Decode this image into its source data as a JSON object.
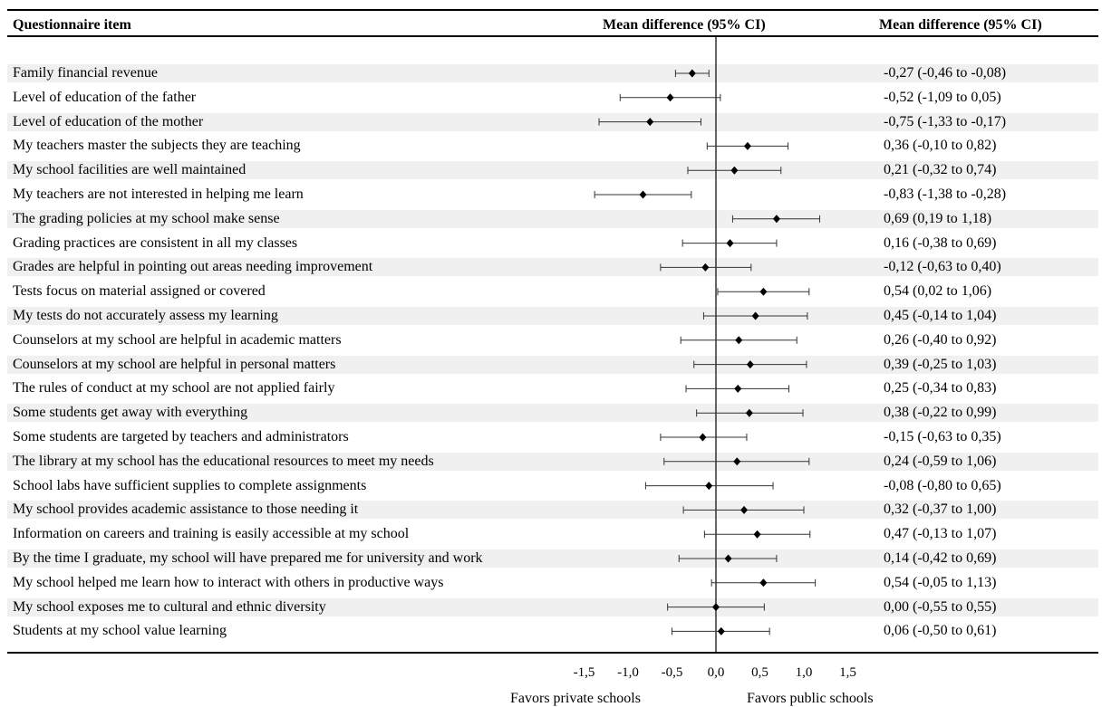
{
  "chart_data": {
    "type": "forest",
    "headers": {
      "item": "Questionnaire item",
      "plot": "Mean difference (95% CI)",
      "values": "Mean difference (95% CI)"
    },
    "xlim": [
      -1.5,
      1.5
    ],
    "ticks": [
      "-1,5",
      "-1,0",
      "-0,5",
      "0,0",
      "0,5",
      "1,0",
      "1,5"
    ],
    "tick_values": [
      -1.5,
      -1.0,
      -0.5,
      0.0,
      0.5,
      1.0,
      1.5
    ],
    "left_label": "Favors private schools",
    "right_label": "Favors public schools",
    "rows": [
      {
        "item": "Family financial revenue",
        "mean": -0.27,
        "lo": -0.46,
        "hi": -0.08,
        "text": "-0,27 (-0,46 to -0,08)"
      },
      {
        "item": "Level of education of the father",
        "mean": -0.52,
        "lo": -1.09,
        "hi": 0.05,
        "text": "-0,52 (-1,09 to 0,05)"
      },
      {
        "item": "Level of education of the mother",
        "mean": -0.75,
        "lo": -1.33,
        "hi": -0.17,
        "text": "-0,75 (-1,33 to -0,17)"
      },
      {
        "item": "My teachers master the subjects they are teaching",
        "mean": 0.36,
        "lo": -0.1,
        "hi": 0.82,
        "text": "0,36 (-0,10 to 0,82)"
      },
      {
        "item": "My school facilities are well maintained",
        "mean": 0.21,
        "lo": -0.32,
        "hi": 0.74,
        "text": "0,21 (-0,32 to 0,74)"
      },
      {
        "item": "My teachers are not interested in helping me learn",
        "mean": -0.83,
        "lo": -1.38,
        "hi": -0.28,
        "text": "-0,83 (-1,38 to -0,28)"
      },
      {
        "item": "The grading policies at my school make sense",
        "mean": 0.69,
        "lo": 0.19,
        "hi": 1.18,
        "text": "0,69 (0,19 to 1,18)"
      },
      {
        "item": "Grading practices are consistent in all my classes",
        "mean": 0.16,
        "lo": -0.38,
        "hi": 0.69,
        "text": "0,16 (-0,38 to 0,69)"
      },
      {
        "item": "Grades are helpful in pointing out areas needing improvement",
        "mean": -0.12,
        "lo": -0.63,
        "hi": 0.4,
        "text": "-0,12 (-0,63 to 0,40)"
      },
      {
        "item": "Tests focus on material assigned or covered",
        "mean": 0.54,
        "lo": 0.02,
        "hi": 1.06,
        "text": "0,54 (0,02 to 1,06)"
      },
      {
        "item": "My tests do not accurately assess my learning",
        "mean": 0.45,
        "lo": -0.14,
        "hi": 1.04,
        "text": "0,45 (-0,14 to 1,04)"
      },
      {
        "item": "Counselors at my school are helpful in academic matters",
        "mean": 0.26,
        "lo": -0.4,
        "hi": 0.92,
        "text": "0,26 (-0,40 to 0,92)"
      },
      {
        "item": "Counselors at my school are helpful in personal matters",
        "mean": 0.39,
        "lo": -0.25,
        "hi": 1.03,
        "text": "0,39 (-0,25 to 1,03)"
      },
      {
        "item": "The rules of conduct at my school are not applied fairly",
        "mean": 0.25,
        "lo": -0.34,
        "hi": 0.83,
        "text": "0,25 (-0,34 to 0,83)"
      },
      {
        "item": "Some students get away with everything",
        "mean": 0.38,
        "lo": -0.22,
        "hi": 0.99,
        "text": "0,38 (-0,22 to 0,99)"
      },
      {
        "item": "Some students are targeted by teachers and administrators",
        "mean": -0.15,
        "lo": -0.63,
        "hi": 0.35,
        "text": "-0,15 (-0,63 to 0,35)"
      },
      {
        "item": "The library at my school has the educational  resources to meet my needs",
        "mean": 0.24,
        "lo": -0.59,
        "hi": 1.06,
        "text": "0,24 (-0,59 to 1,06)"
      },
      {
        "item": "School labs have sufficient supplies to complete assignments",
        "mean": -0.08,
        "lo": -0.8,
        "hi": 0.65,
        "text": "-0,08 (-0,80 to 0,65)"
      },
      {
        "item": "My school provides academic assistance to those needing it",
        "mean": 0.32,
        "lo": -0.37,
        "hi": 1.0,
        "text": "0,32 (-0,37 to 1,00)"
      },
      {
        "item": "Information on careers and training is easily accessible at my school",
        "mean": 0.47,
        "lo": -0.13,
        "hi": 1.07,
        "text": "0,47 (-0,13 to 1,07)"
      },
      {
        "item": "By the time I graduate, my school will have prepared me for university and work",
        "mean": 0.14,
        "lo": -0.42,
        "hi": 0.69,
        "text": "0,14 (-0,42 to 0,69)"
      },
      {
        "item": "My school helped me learn how to interact with others in productive ways",
        "mean": 0.54,
        "lo": -0.05,
        "hi": 1.13,
        "text": "0,54 (-0,05 to 1,13)"
      },
      {
        "item": "My school exposes me to cultural and ethnic diversity",
        "mean": 0.0,
        "lo": -0.55,
        "hi": 0.55,
        "text": "0,00 (-0,55 to 0,55)"
      },
      {
        "item": "Students at my school value learning",
        "mean": 0.06,
        "lo": -0.5,
        "hi": 0.61,
        "text": "0,06 (-0,50 to 0,61)"
      }
    ]
  }
}
